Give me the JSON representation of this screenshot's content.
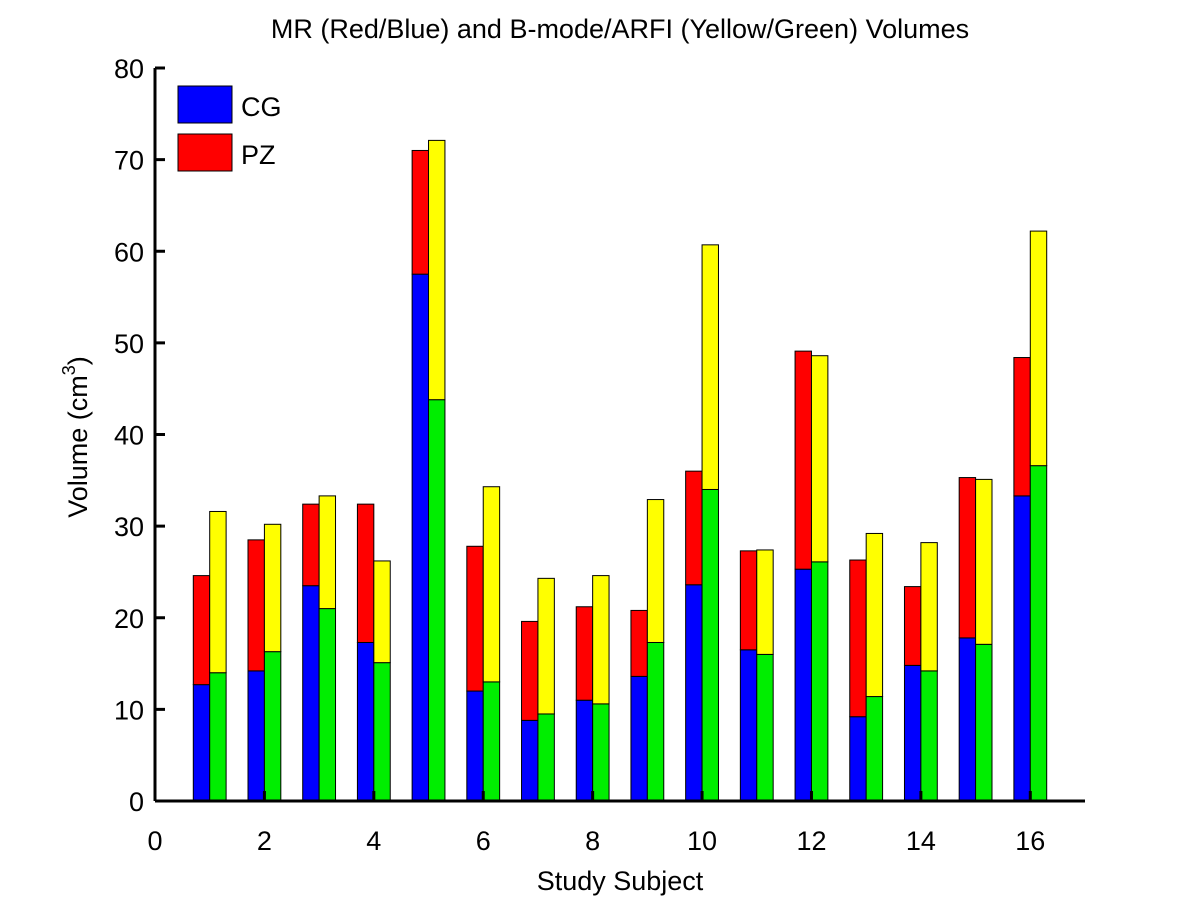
{
  "chart_data": {
    "type": "bar",
    "title": "MR (Red/Blue) and B-mode/ARFI (Yellow/Green) Volumes",
    "xlabel": "Study Subject",
    "ylabel": "Volume (cm",
    "ylabel_sup": "3",
    "ylabel_close": ")",
    "xlim": [
      0,
      17
    ],
    "ylim": [
      0,
      80
    ],
    "xticks": [
      0,
      2,
      4,
      6,
      8,
      10,
      12,
      14,
      16
    ],
    "yticks": [
      0,
      10,
      20,
      30,
      40,
      50,
      60,
      70,
      80
    ],
    "subjects": [
      1,
      2,
      3,
      4,
      5,
      6,
      7,
      8,
      9,
      10,
      11,
      12,
      13,
      14,
      15,
      16
    ],
    "legend": [
      {
        "label": "CG",
        "color": "#0000ff"
      },
      {
        "label": "PZ",
        "color": "#ff0000"
      }
    ],
    "legend_position": "top-left",
    "groups": [
      {
        "name": "MR",
        "series": [
          {
            "name": "CG",
            "color": "#0000ff",
            "values": [
              12.7,
              14.2,
              23.5,
              17.3,
              57.5,
              12.0,
              8.8,
              11.0,
              13.6,
              23.6,
              16.5,
              25.3,
              9.2,
              14.8,
              17.8,
              33.3
            ]
          },
          {
            "name": "PZ",
            "color": "#ff0000",
            "values": [
              11.9,
              14.3,
              8.9,
              15.1,
              13.5,
              15.8,
              10.8,
              10.2,
              7.2,
              12.4,
              10.8,
              23.8,
              17.1,
              8.6,
              17.5,
              15.1
            ]
          }
        ]
      },
      {
        "name": "B-mode/ARFI",
        "series": [
          {
            "name": "CG",
            "color": "#00ee00",
            "values": [
              14.0,
              16.3,
              21.0,
              15.1,
              43.8,
              13.0,
              9.5,
              10.6,
              17.3,
              34.0,
              16.0,
              26.1,
              11.4,
              14.2,
              17.1,
              36.6
            ]
          },
          {
            "name": "PZ",
            "color": "#ffff00",
            "values": [
              17.6,
              13.9,
              12.3,
              11.1,
              28.3,
              21.3,
              14.8,
              14.0,
              15.6,
              26.7,
              11.4,
              22.5,
              17.8,
              14.0,
              18.0,
              25.6
            ]
          }
        ]
      }
    ],
    "grid": false
  }
}
